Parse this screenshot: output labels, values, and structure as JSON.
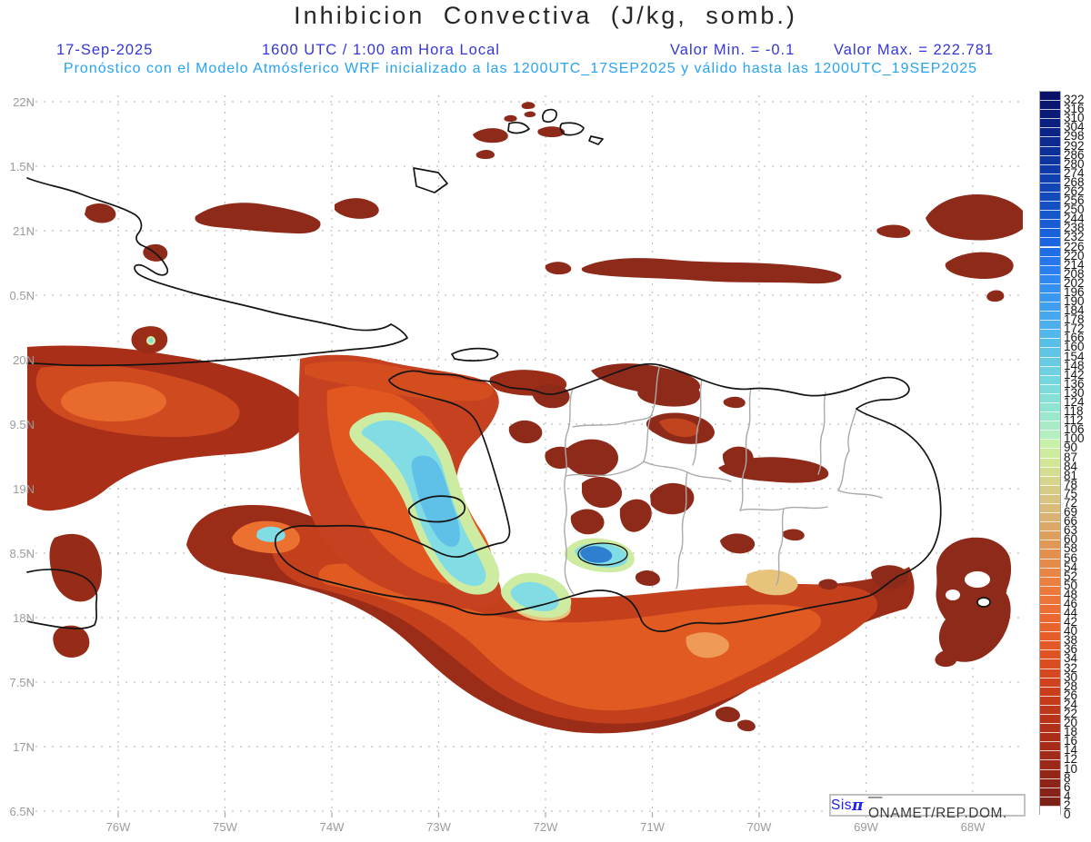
{
  "header": {
    "title": "Inhibicion Convectiva (J/kg, somb.)",
    "date": "17-Sep-2025",
    "time": "1600 UTC / 1:00 am Hora Local",
    "valor_min": "Valor Min. = -0.1",
    "valor_max": "Valor Max. = 222.781",
    "forecast": "Pronóstico con el Modelo Atmósferico WRF inicializado a las 1200UTC_17SEP2025 y válido hasta las  1200UTC_19SEP2025"
  },
  "colors": {
    "header_blue": "#3437d8",
    "header_cyan": "#27a3f2",
    "axis_gray": "#9b9b9b",
    "grid_gray": "#bdbdbd",
    "coast_black": "#141414",
    "admin_gray": "#a9a9a9"
  },
  "axes": {
    "lat_labels": [
      "22N",
      "1.5N",
      "21N",
      "0.5N",
      "20N",
      "9.5N",
      "19N",
      "8.5N",
      "18N",
      "7.5N",
      "17N",
      "6.5N"
    ],
    "lon_labels": [
      "76W",
      "75W",
      "74W",
      "73W",
      "72W",
      "71W",
      "70W",
      "69W",
      "68W"
    ]
  },
  "colorbar": {
    "labels": [
      "322",
      "316",
      "310",
      "304",
      "298",
      "292",
      "286",
      "280",
      "274",
      "268",
      "262",
      "256",
      "250",
      "244",
      "238",
      "232",
      "226",
      "220",
      "214",
      "208",
      "202",
      "196",
      "190",
      "184",
      "178",
      "172",
      "166",
      "160",
      "154",
      "148",
      "142",
      "136",
      "130",
      "124",
      "118",
      "112",
      "106",
      "100",
      "90",
      "87",
      "84",
      "81",
      "78",
      "75",
      "72",
      "69",
      "66",
      "63",
      "60",
      "58",
      "56",
      "54",
      "52",
      "50",
      "48",
      "46",
      "44",
      "42",
      "40",
      "38",
      "36",
      "34",
      "32",
      "30",
      "28",
      "26",
      "24",
      "22",
      "20",
      "18",
      "16",
      "14",
      "12",
      "10",
      "8",
      "6",
      "4",
      "2",
      "0"
    ],
    "stops": [
      {
        "i": 0,
        "c": "#0a1168"
      },
      {
        "i": 4,
        "c": "#0c2488"
      },
      {
        "i": 8,
        "c": "#0e3aa8"
      },
      {
        "i": 12,
        "c": "#1450c4"
      },
      {
        "i": 16,
        "c": "#1b66e0"
      },
      {
        "i": 19,
        "c": "#2a7ff0"
      },
      {
        "i": 23,
        "c": "#3f9fee"
      },
      {
        "i": 27,
        "c": "#58bfe8"
      },
      {
        "i": 31,
        "c": "#74d7de"
      },
      {
        "i": 34,
        "c": "#8fe4d2"
      },
      {
        "i": 37,
        "c": "#b4efc0"
      },
      {
        "i": 38,
        "c": "#c7f2a8"
      },
      {
        "i": 40,
        "c": "#d3e698"
      },
      {
        "i": 43,
        "c": "#d7cc86"
      },
      {
        "i": 46,
        "c": "#dab274"
      },
      {
        "i": 48,
        "c": "#de9e5c"
      },
      {
        "i": 50,
        "c": "#e38f4e"
      },
      {
        "i": 53,
        "c": "#ea7f3f"
      },
      {
        "i": 57,
        "c": "#ec6830"
      },
      {
        "i": 61,
        "c": "#df5222"
      },
      {
        "i": 65,
        "c": "#ca3d1b"
      },
      {
        "i": 69,
        "c": "#b33018"
      },
      {
        "i": 73,
        "c": "#9b2818"
      },
      {
        "i": 76,
        "c": "#872218"
      },
      {
        "i": 77,
        "c": "#7d2018"
      },
      {
        "i": 78,
        "c": "#ffffff"
      }
    ]
  },
  "branding": {
    "sis": "Sis",
    "pi": "π",
    "rest": "— ONAMET/REP.DOM."
  }
}
